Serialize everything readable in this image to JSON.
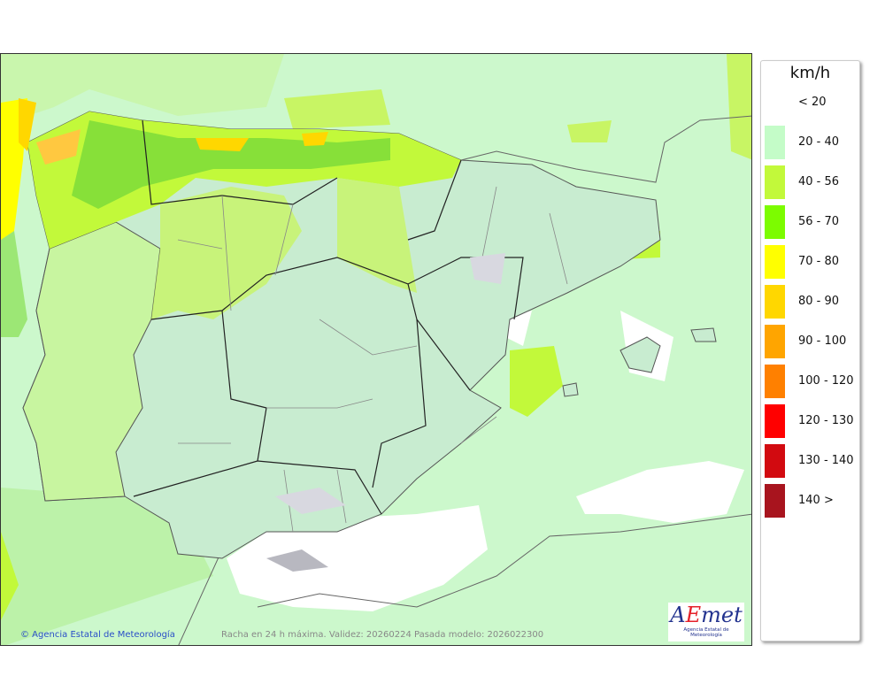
{
  "map": {
    "credit": "© Agencia Estatal de Meteorología",
    "caption": "Racha en 24 h máxima. Validez: 20260224 Pasada modelo: 2026022300",
    "logo_text": "AEmet",
    "logo_subtitle": "Agencia Estatal de Meteorología"
  },
  "legend": {
    "unit": "km/h",
    "items": [
      {
        "label": "< 20",
        "color": null
      },
      {
        "label": "20 - 40",
        "color": "#c4fcc8"
      },
      {
        "label": "40 - 56",
        "color": "#c2f93a"
      },
      {
        "label": "56 - 70",
        "color": "#7cfc00"
      },
      {
        "label": "70 - 80",
        "color": "#ffff00"
      },
      {
        "label": "80 - 90",
        "color": "#ffd700"
      },
      {
        "label": "90 - 100",
        "color": "#ffa500"
      },
      {
        "label": "100 - 120",
        "color": "#ff8000"
      },
      {
        "label": "120 - 130",
        "color": "#ff0000"
      },
      {
        "label": "130 - 140",
        "color": "#d20a10"
      },
      {
        "label": "140 >",
        "color": "#a8141e"
      }
    ]
  }
}
